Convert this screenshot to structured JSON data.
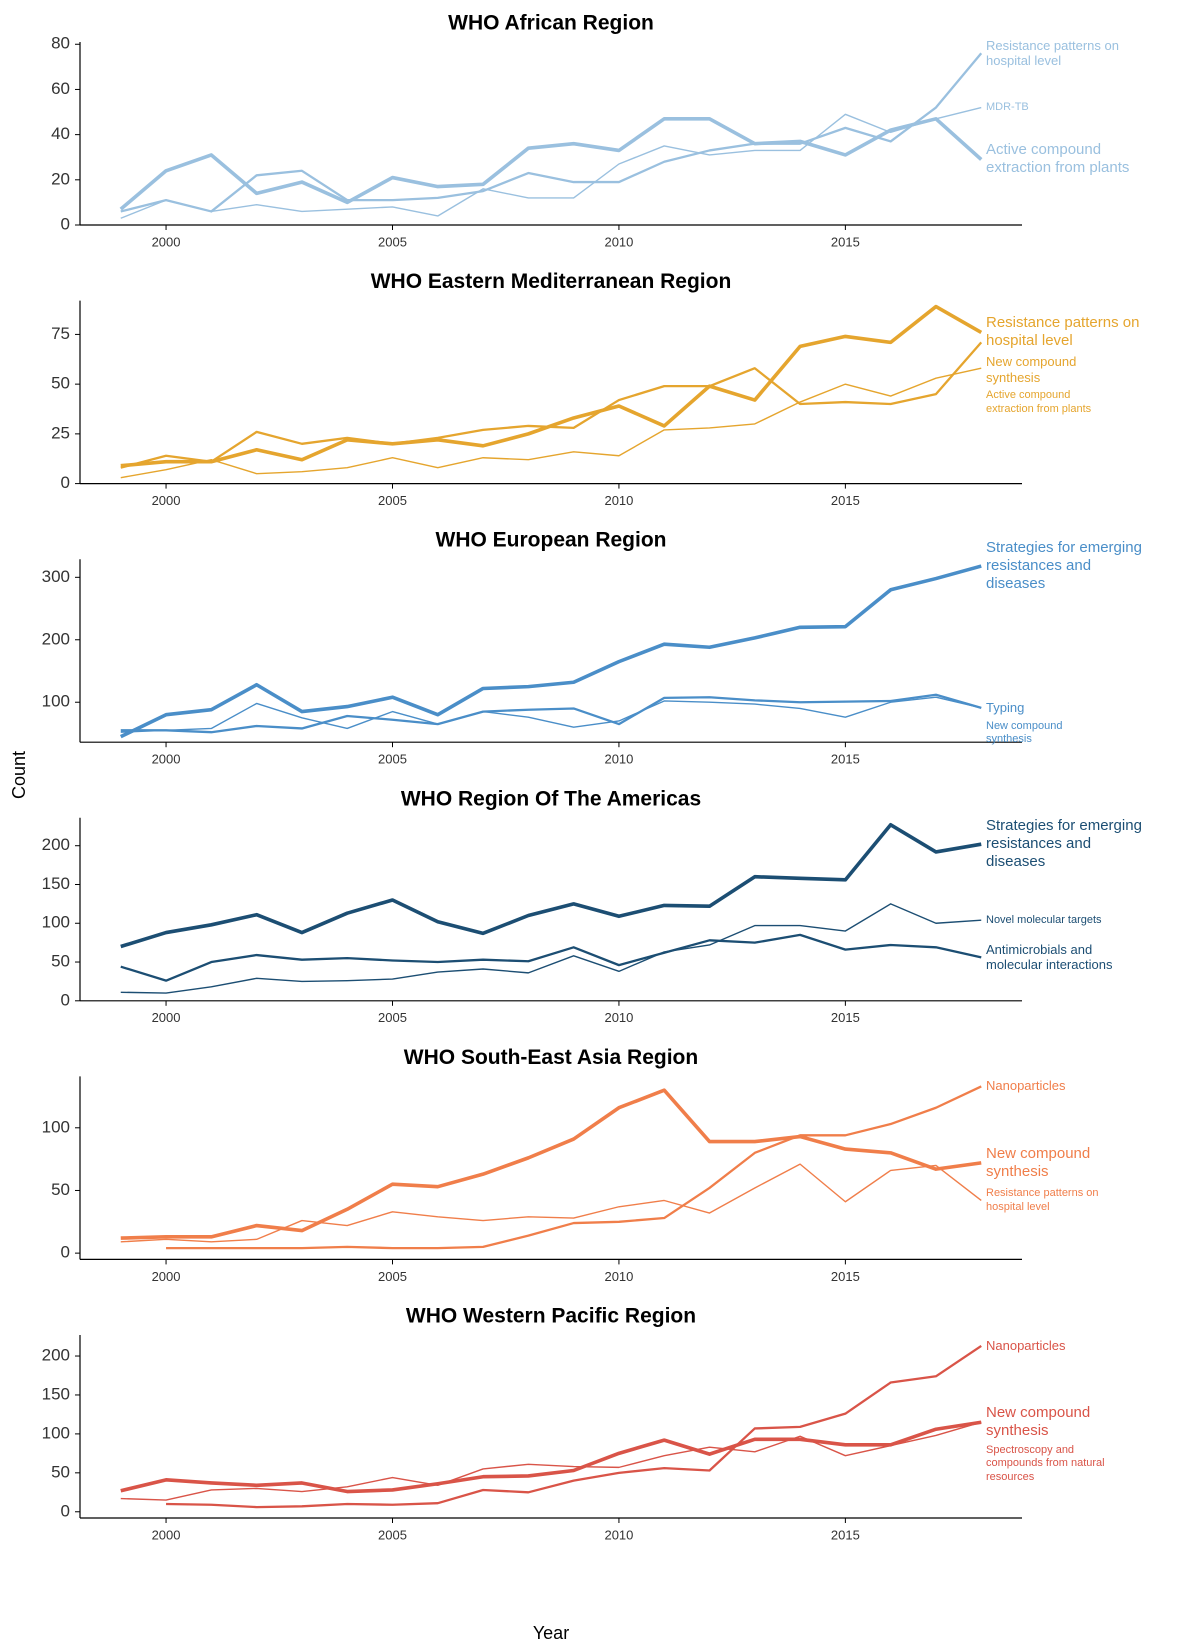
{
  "ylabel": "Count",
  "xlabel": "Year",
  "chart_data": [
    {
      "type": "line",
      "title": "WHO African Region",
      "color": "#9ac0df",
      "x": [
        1999,
        2000,
        2001,
        2002,
        2003,
        2004,
        2005,
        2006,
        2007,
        2008,
        2009,
        2010,
        2011,
        2012,
        2013,
        2014,
        2015,
        2016,
        2017,
        2018
      ],
      "xlim": [
        1998.1,
        2018.9
      ],
      "xticks": [
        2000,
        2005,
        2010,
        2015
      ],
      "ylim": [
        0,
        81
      ],
      "yticks": [
        0,
        20,
        40,
        60,
        80
      ],
      "series": [
        {
          "name": "Active compound extraction from plants",
          "values": [
            7,
            24,
            31,
            14,
            19,
            10,
            21,
            17,
            18,
            34,
            36,
            33,
            47,
            47,
            36,
            37,
            31,
            42,
            47,
            29
          ]
        },
        {
          "name": "Resistance patterns on hospital level",
          "values": [
            6,
            11,
            6,
            22,
            24,
            11,
            11,
            12,
            15,
            23,
            19,
            19,
            28,
            33,
            36,
            36,
            43,
            37,
            52,
            76
          ]
        },
        {
          "name": "MDR-TB",
          "values": [
            3,
            11,
            6,
            9,
            6,
            7,
            8,
            4,
            16,
            12,
            12,
            27,
            35,
            31,
            33,
            33,
            49,
            41,
            47,
            52
          ]
        }
      ]
    },
    {
      "type": "line",
      "title": "WHO Eastern Mediterranean Region",
      "color": "#e5a52e",
      "x": [
        1999,
        2000,
        2001,
        2002,
        2003,
        2004,
        2005,
        2006,
        2007,
        2008,
        2009,
        2010,
        2011,
        2012,
        2013,
        2014,
        2015,
        2016,
        2017,
        2018
      ],
      "xlim": [
        1998.1,
        2018.9
      ],
      "xticks": [
        2000,
        2005,
        2010,
        2015
      ],
      "ylim": [
        0,
        92
      ],
      "yticks": [
        0,
        25,
        50,
        75
      ],
      "series": [
        {
          "name": "Resistance patterns on hospital level",
          "values": [
            9,
            11,
            11,
            17,
            12,
            22,
            20,
            22,
            19,
            25,
            33,
            39,
            29,
            49,
            42,
            69,
            74,
            71,
            89,
            76
          ]
        },
        {
          "name": "New compound synthesis",
          "values": [
            8,
            14,
            11,
            26,
            20,
            23,
            20,
            23,
            27,
            29,
            28,
            42,
            49,
            49,
            58,
            40,
            41,
            40,
            45,
            71
          ]
        },
        {
          "name": "Active compound extraction from plants",
          "values": [
            3,
            7,
            12,
            5,
            6,
            8,
            13,
            8,
            13,
            12,
            16,
            14,
            27,
            28,
            30,
            41,
            50,
            44,
            53,
            58
          ]
        }
      ]
    },
    {
      "type": "line",
      "title": "WHO European Region",
      "color": "#4a8ec8",
      "x": [
        1999,
        2000,
        2001,
        2002,
        2003,
        2004,
        2005,
        2006,
        2007,
        2008,
        2009,
        2010,
        2011,
        2012,
        2013,
        2014,
        2015,
        2016,
        2017,
        2018
      ],
      "xlim": [
        1998.1,
        2018.9
      ],
      "xticks": [
        2000,
        2005,
        2010,
        2015
      ],
      "ylim": [
        36,
        329
      ],
      "yticks": [
        100,
        200,
        300
      ],
      "series": [
        {
          "name": "Strategies for emerging resistances and diseases",
          "values": [
            45,
            80,
            88,
            128,
            85,
            93,
            108,
            80,
            122,
            125,
            132,
            165,
            193,
            188,
            203,
            220,
            221,
            280,
            298,
            318
          ]
        },
        {
          "name": "Typing",
          "values": [
            55,
            55,
            52,
            62,
            58,
            78,
            72,
            65,
            85,
            88,
            90,
            65,
            107,
            108,
            103,
            100,
            101,
            102,
            112,
            91
          ]
        },
        {
          "name": "New compound synthesis",
          "values": [
            52,
            55,
            58,
            98,
            75,
            58,
            85,
            65,
            85,
            76,
            60,
            70,
            102,
            100,
            97,
            90,
            76,
            100,
            108,
            91
          ]
        }
      ]
    },
    {
      "type": "line",
      "title": "WHO Region Of The Americas",
      "color": "#1c4e73",
      "x": [
        1999,
        2000,
        2001,
        2002,
        2003,
        2004,
        2005,
        2006,
        2007,
        2008,
        2009,
        2010,
        2011,
        2012,
        2013,
        2014,
        2015,
        2016,
        2017,
        2018
      ],
      "xlim": [
        1998.1,
        2018.9
      ],
      "xticks": [
        2000,
        2005,
        2010,
        2015
      ],
      "ylim": [
        0,
        236
      ],
      "yticks": [
        0,
        50,
        100,
        150,
        200
      ],
      "series": [
        {
          "name": "Strategies for emerging resistances and diseases",
          "values": [
            70,
            88,
            98,
            111,
            88,
            113,
            130,
            102,
            87,
            110,
            125,
            109,
            123,
            122,
            160,
            158,
            156,
            227,
            192,
            202
          ]
        },
        {
          "name": "Antimicrobials and molecular interactions",
          "values": [
            44,
            26,
            50,
            59,
            53,
            55,
            52,
            50,
            53,
            51,
            69,
            46,
            62,
            78,
            75,
            85,
            66,
            72,
            69,
            56
          ]
        },
        {
          "name": "Novel molecular targets",
          "values": [
            11,
            10,
            18,
            29,
            25,
            26,
            28,
            37,
            41,
            36,
            58,
            38,
            63,
            72,
            97,
            97,
            90,
            125,
            100,
            104
          ]
        }
      ]
    },
    {
      "type": "line",
      "title": "WHO South-East Asia Region",
      "color": "#f07e4a",
      "x": [
        1999,
        2000,
        2001,
        2002,
        2003,
        2004,
        2005,
        2006,
        2007,
        2008,
        2009,
        2010,
        2011,
        2012,
        2013,
        2014,
        2015,
        2016,
        2017,
        2018
      ],
      "xlim": [
        1998.1,
        2018.9
      ],
      "xticks": [
        2000,
        2005,
        2010,
        2015
      ],
      "ylim": [
        -5,
        141
      ],
      "yticks": [
        0,
        50,
        100
      ],
      "series": [
        {
          "name": "New compound synthesis",
          "values": [
            12,
            13,
            13,
            22,
            18,
            35,
            55,
            53,
            63,
            76,
            91,
            116,
            130,
            89,
            89,
            93,
            83,
            80,
            67,
            72
          ]
        },
        {
          "name": "Nanoparticles",
          "values": [
            null,
            4,
            4,
            4,
            4,
            5,
            4,
            4,
            5,
            14,
            24,
            25,
            28,
            52,
            80,
            94,
            94,
            103,
            116,
            133
          ]
        },
        {
          "name": "Resistance patterns on hospital level",
          "values": [
            9,
            11,
            9,
            11,
            26,
            22,
            33,
            29,
            26,
            29,
            28,
            37,
            42,
            32,
            52,
            71,
            41,
            66,
            70,
            42
          ]
        }
      ]
    },
    {
      "type": "line",
      "title": "WHO Western Pacific Region",
      "color": "#d95448",
      "x": [
        1999,
        2000,
        2001,
        2002,
        2003,
        2004,
        2005,
        2006,
        2007,
        2008,
        2009,
        2010,
        2011,
        2012,
        2013,
        2014,
        2015,
        2016,
        2017,
        2018
      ],
      "xlim": [
        1998.1,
        2018.9
      ],
      "xticks": [
        2000,
        2005,
        2010,
        2015
      ],
      "ylim": [
        -8,
        227
      ],
      "yticks": [
        0,
        50,
        100,
        150,
        200
      ],
      "series": [
        {
          "name": "New compound synthesis",
          "values": [
            27,
            41,
            37,
            34,
            37,
            26,
            28,
            36,
            45,
            46,
            53,
            75,
            92,
            74,
            93,
            93,
            86,
            86,
            106,
            115
          ]
        },
        {
          "name": "Nanoparticles",
          "values": [
            null,
            10,
            9,
            6,
            7,
            10,
            9,
            11,
            28,
            25,
            40,
            50,
            56,
            53,
            107,
            109,
            126,
            166,
            174,
            213
          ]
        },
        {
          "name": "Spectroscopy and compounds from natural resources",
          "values": [
            17,
            15,
            28,
            30,
            26,
            32,
            44,
            34,
            55,
            61,
            58,
            57,
            72,
            83,
            77,
            97,
            72,
            85,
            98,
            115
          ]
        }
      ]
    }
  ]
}
